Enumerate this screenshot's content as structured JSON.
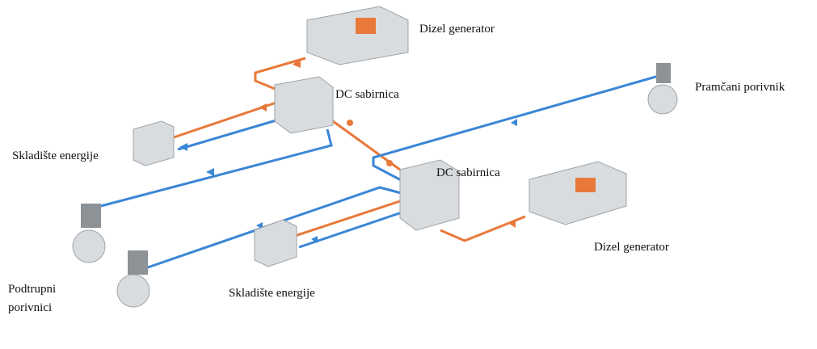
{
  "nodes": [
    {
      "label": "Dizel generator"
    },
    {
      "label": "DC sabirnica"
    },
    {
      "label": "Pramčani porivnik"
    },
    {
      "label": "Skladište energije"
    },
    {
      "label": "DC sabirnica"
    },
    {
      "label": "Dizel generator"
    },
    {
      "label_lines": [
        "Podtrupni",
        "porivnici"
      ]
    },
    {
      "label": "Skladište energije"
    }
  ]
}
